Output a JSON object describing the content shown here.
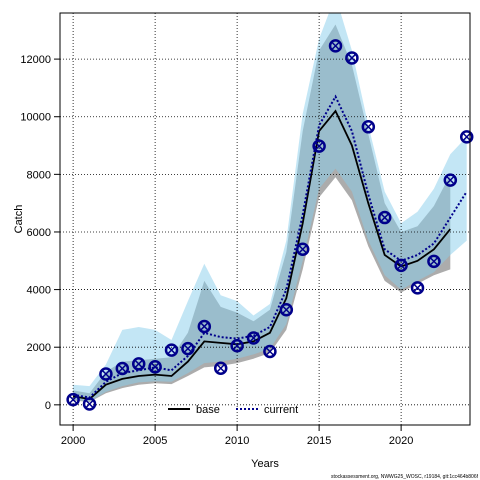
{
  "chart_data": {
    "type": "line",
    "title": "",
    "xlabel": "Years",
    "ylabel": "Catch",
    "xlim": [
      1999.2,
      2024.2
    ],
    "ylim": [
      -700,
      13600
    ],
    "xticks": [
      2000,
      2005,
      2010,
      2015,
      2020
    ],
    "yticks": [
      0,
      2000,
      4000,
      6000,
      8000,
      10000,
      12000
    ],
    "grid": true,
    "legend_position": "bottom-center",
    "legend": [
      {
        "name": "base",
        "style": "solid",
        "color": "#000000"
      },
      {
        "name": "current",
        "style": "dotted",
        "color": "#00008b"
      }
    ],
    "footer_text": "stockassessment.org, NWWG25_WOSC, r19184, git:1cc464b806f",
    "colors": {
      "observed": "#00008b",
      "band_base": "#808080",
      "band_current": "#87ceeb"
    },
    "observed": {
      "x": [
        2000,
        2001,
        2002,
        2003,
        2004,
        2005,
        2006,
        2007,
        2008,
        2009,
        2010,
        2011,
        2012,
        2013,
        2014,
        2015,
        2016,
        2017,
        2018,
        2019,
        2020,
        2021,
        2022,
        2023,
        2024
      ],
      "y": [
        180,
        30,
        1070,
        1260,
        1420,
        1320,
        1900,
        1950,
        2720,
        1270,
        2050,
        2320,
        1850,
        3300,
        5400,
        8980,
        12460,
        12040,
        9650,
        6500,
        4840,
        4060,
        4980,
        7800,
        9300
      ]
    },
    "series": [
      {
        "name": "base",
        "x": [
          2000,
          2001,
          2002,
          2003,
          2004,
          2005,
          2006,
          2007,
          2008,
          2009,
          2010,
          2011,
          2012,
          2013,
          2014,
          2015,
          2016,
          2017,
          2018,
          2019,
          2020,
          2021,
          2022,
          2023
        ],
        "values": [
          300,
          200,
          700,
          900,
          1000,
          1050,
          1000,
          1500,
          2200,
          2150,
          2100,
          2200,
          2500,
          3700,
          6300,
          9500,
          10200,
          9000,
          7000,
          5200,
          4800,
          5000,
          5400,
          6100
        ],
        "low": [
          150,
          100,
          400,
          580,
          700,
          750,
          720,
          1000,
          1300,
          1350,
          1450,
          1600,
          1800,
          2600,
          4700,
          7200,
          7900,
          7100,
          5500,
          4300,
          3900,
          4200,
          4500,
          4700
        ],
        "high": [
          500,
          400,
          1150,
          1500,
          1550,
          1600,
          1650,
          2500,
          4300,
          3400,
          3200,
          2900,
          3300,
          5300,
          9500,
          12300,
          13200,
          11800,
          9400,
          7000,
          6000,
          6200,
          6900,
          8000
        ]
      },
      {
        "name": "current",
        "x": [
          2000,
          2001,
          2002,
          2003,
          2004,
          2005,
          2006,
          2007,
          2008,
          2009,
          2010,
          2011,
          2012,
          2013,
          2014,
          2015,
          2016,
          2017,
          2018,
          2019,
          2020,
          2021,
          2022,
          2023,
          2024
        ],
        "values": [
          350,
          250,
          800,
          1100,
          1200,
          1300,
          1200,
          1700,
          2500,
          2350,
          2300,
          2400,
          2700,
          4000,
          6600,
          9700,
          10700,
          9500,
          7300,
          5400,
          5000,
          5200,
          5600,
          6500,
          7400
        ],
        "low": [
          180,
          120,
          450,
          650,
          780,
          820,
          800,
          1100,
          1450,
          1500,
          1600,
          1750,
          1950,
          2800,
          5000,
          7500,
          8200,
          7400,
          5700,
          4500,
          4000,
          4300,
          4600,
          5200,
          5700
        ],
        "high": [
          700,
          650,
          1400,
          2600,
          2700,
          2600,
          2250,
          3600,
          4900,
          3800,
          3600,
          3100,
          3500,
          5700,
          10100,
          12700,
          14200,
          12300,
          9700,
          7400,
          6300,
          6700,
          7500,
          8700,
          9300
        ]
      }
    ]
  }
}
